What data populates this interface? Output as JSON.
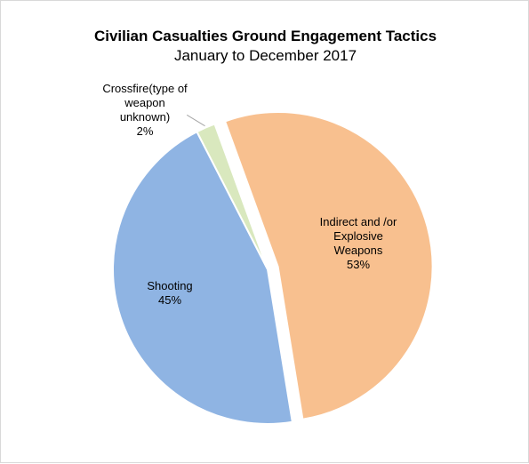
{
  "chart_data": {
    "type": "pie",
    "title": "Civilian Casualties Ground Engagement Tactics",
    "subtitle": "January to December 2017",
    "legend": "none",
    "slices": [
      {
        "label_lines": [
          "Indirect and /or",
          "Explosive",
          "Weapons"
        ],
        "value": 53,
        "value_label": "53%",
        "color": "#F8C08F",
        "exploded": true
      },
      {
        "label_lines": [
          "Shooting"
        ],
        "value": 45,
        "value_label": "45%",
        "color": "#8FB4E3",
        "exploded": false
      },
      {
        "label_lines": [
          "Crossfire(type of",
          "weapon",
          "unknown)"
        ],
        "value": 2,
        "value_label": "2%",
        "color": "#D9E8BE",
        "exploded": false
      }
    ]
  }
}
